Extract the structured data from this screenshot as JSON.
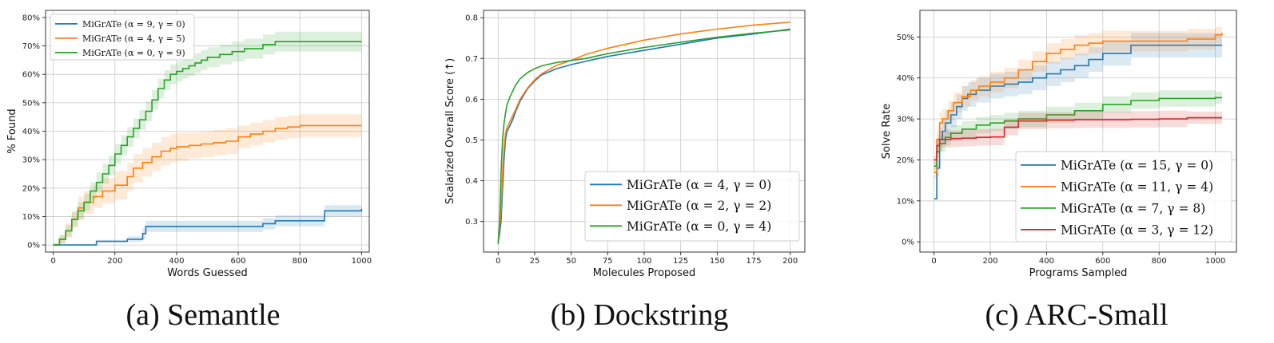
{
  "colors": {
    "blue": "#1f77b4",
    "orange": "#ff7f0e",
    "green": "#2ca02c",
    "red": "#d62728"
  },
  "chart_data": [
    {
      "type": "line",
      "caption": "(a) Semantle",
      "xlabel": "Words Guessed",
      "ylabel": "% Found",
      "xlim": [
        -25,
        1025
      ],
      "ylim": [
        -2.5,
        82.5
      ],
      "xticks": [
        0,
        200,
        400,
        600,
        800,
        1000
      ],
      "xtick_labels": [
        "0",
        "200",
        "400",
        "600",
        "800",
        "1000"
      ],
      "yticks": [
        0,
        10,
        20,
        30,
        40,
        50,
        60,
        70,
        80
      ],
      "ytick_labels": [
        "0%",
        "10%",
        "20%",
        "30%",
        "40%",
        "50%",
        "60%",
        "70%",
        "80%"
      ],
      "grid": true,
      "legend": "upper left",
      "series": [
        {
          "name": "MiGrATe (α = 9, γ = 0)",
          "color": "#1f77b4",
          "step": true,
          "x": [
            0,
            140,
            240,
            290,
            300,
            680,
            720,
            880,
            1000
          ],
          "y": [
            0,
            1.3,
            2,
            4,
            6.5,
            7.5,
            8.5,
            12,
            12.7
          ],
          "band": [
            0,
            0.5,
            1,
            2,
            2,
            2,
            2,
            2,
            2
          ]
        },
        {
          "name": "MiGrATe (α = 4, γ = 5)",
          "color": "#ff7f0e",
          "step": true,
          "x": [
            0,
            20,
            40,
            60,
            80,
            100,
            130,
            160,
            200,
            240,
            260,
            290,
            320,
            350,
            380,
            400,
            440,
            480,
            520,
            560,
            600,
            640,
            680,
            720,
            760,
            800,
            1000
          ],
          "y": [
            0,
            2,
            5,
            9,
            13,
            15,
            17,
            19,
            21,
            24,
            27,
            29,
            31,
            33,
            34,
            34.5,
            35,
            35.5,
            36,
            36.5,
            38,
            39,
            40,
            41,
            41.5,
            42,
            42
          ],
          "band": [
            0.5,
            1.5,
            2.5,
            3,
            4,
            4,
            4,
            4.5,
            5,
            5,
            5,
            5,
            5,
            5,
            5,
            5,
            4.5,
            4.5,
            4.5,
            4.5,
            4,
            4,
            4,
            4,
            4,
            4,
            4
          ]
        },
        {
          "name": "MiGrATe (α = 0, γ = 9)",
          "color": "#2ca02c",
          "step": true,
          "x": [
            0,
            20,
            40,
            60,
            80,
            100,
            120,
            140,
            160,
            180,
            200,
            220,
            240,
            260,
            280,
            300,
            320,
            340,
            360,
            380,
            400,
            420,
            440,
            460,
            480,
            500,
            540,
            580,
            620,
            680,
            720,
            1000
          ],
          "y": [
            0,
            2,
            5,
            9,
            12,
            15,
            19,
            22,
            25,
            28,
            32,
            35,
            38,
            41,
            44,
            47,
            51,
            55,
            58,
            60,
            61,
            62,
            63,
            64,
            65,
            66,
            67,
            68,
            69,
            70.5,
            71.5,
            71.5
          ],
          "band": [
            0.5,
            1.5,
            2,
            2.5,
            3,
            3,
            3,
            3.5,
            3.5,
            3.5,
            3.5,
            3.5,
            3.5,
            3.5,
            3.5,
            3.5,
            3.5,
            3.5,
            3.5,
            3.5,
            3.5,
            3.5,
            3.5,
            3.5,
            3.5,
            3.5,
            3.5,
            3.5,
            3.5,
            3.5,
            3.5,
            3.5
          ]
        }
      ]
    },
    {
      "type": "line",
      "caption": "(b) Dockstring",
      "xlabel": "Molecules Proposed",
      "ylabel": "Scalarized Overall Score (↑)",
      "xlim": [
        -10,
        210
      ],
      "ylim": [
        0.225,
        0.818
      ],
      "xticks": [
        0,
        25,
        50,
        75,
        100,
        125,
        150,
        175,
        200
      ],
      "xtick_labels": [
        "0",
        "25",
        "50",
        "75",
        "100",
        "125",
        "150",
        "175",
        "200"
      ],
      "yticks": [
        0.3,
        0.4,
        0.5,
        0.6,
        0.7,
        0.8
      ],
      "ytick_labels": [
        "0.3",
        "0.4",
        "0.5",
        "0.6",
        "0.7",
        "0.8"
      ],
      "grid": true,
      "legend": "lower right",
      "series": [
        {
          "name": "MiGrATe (α = 4, γ = 0)",
          "color": "#1f77b4",
          "step": false,
          "x": [
            0,
            1,
            2,
            3,
            4,
            5,
            6,
            8,
            10,
            12,
            15,
            20,
            25,
            30,
            40,
            50,
            60,
            75,
            100,
            125,
            150,
            175,
            200
          ],
          "y": [
            0.25,
            0.27,
            0.3,
            0.38,
            0.45,
            0.5,
            0.52,
            0.535,
            0.55,
            0.57,
            0.595,
            0.625,
            0.645,
            0.66,
            0.675,
            0.685,
            0.693,
            0.705,
            0.72,
            0.735,
            0.75,
            0.76,
            0.772
          ]
        },
        {
          "name": "MiGrATe (α = 2, γ = 2)",
          "color": "#ff7f0e",
          "step": false,
          "x": [
            0,
            1,
            2,
            3,
            4,
            5,
            6,
            8,
            10,
            12,
            15,
            20,
            25,
            30,
            40,
            50,
            60,
            75,
            100,
            125,
            150,
            175,
            200
          ],
          "y": [
            0.25,
            0.28,
            0.33,
            0.42,
            0.48,
            0.515,
            0.53,
            0.545,
            0.56,
            0.575,
            0.6,
            0.627,
            0.648,
            0.663,
            0.683,
            0.695,
            0.71,
            0.725,
            0.745,
            0.76,
            0.772,
            0.782,
            0.789
          ]
        },
        {
          "name": "MiGrATe (α = 0, γ = 4)",
          "color": "#2ca02c",
          "step": false,
          "x": [
            0,
            1,
            2,
            3,
            4,
            5,
            6,
            8,
            10,
            12,
            15,
            20,
            25,
            30,
            40,
            50,
            60,
            75,
            100,
            125,
            150,
            175,
            200
          ],
          "y": [
            0.245,
            0.3,
            0.42,
            0.5,
            0.54,
            0.565,
            0.585,
            0.605,
            0.62,
            0.635,
            0.65,
            0.665,
            0.675,
            0.682,
            0.69,
            0.695,
            0.7,
            0.712,
            0.727,
            0.74,
            0.752,
            0.762,
            0.77
          ]
        }
      ]
    },
    {
      "type": "line",
      "caption": "(c) ARC-Small",
      "xlabel": "Programs Sampled",
      "ylabel": "Solve Rate",
      "xlim": [
        -50,
        1075
      ],
      "ylim": [
        -2.5,
        56.5
      ],
      "xticks": [
        0,
        200,
        400,
        600,
        800,
        1000
      ],
      "xtick_labels": [
        "0",
        "200",
        "400",
        "600",
        "800",
        "1000"
      ],
      "yticks": [
        0,
        10,
        20,
        30,
        40,
        50
      ],
      "ytick_labels": [
        "0%",
        "10%",
        "20%",
        "30%",
        "40%",
        "50%"
      ],
      "grid": true,
      "legend": "lower right",
      "series": [
        {
          "name": "MiGrATe (α = 15, γ = 0)",
          "color": "#1f77b4",
          "step": true,
          "x": [
            0,
            10,
            20,
            30,
            40,
            60,
            80,
            100,
            120,
            150,
            200,
            250,
            300,
            350,
            400,
            450,
            500,
            550,
            600,
            700,
            1024
          ],
          "y": [
            10.5,
            18,
            25,
            27,
            29,
            31,
            33,
            35,
            36,
            37,
            38,
            38.5,
            39,
            40,
            41,
            42,
            43,
            44.5,
            46,
            48,
            48
          ],
          "band": [
            0,
            2,
            3,
            3,
            3,
            3,
            3,
            3,
            3,
            3,
            3,
            3,
            3,
            3,
            3,
            3,
            3,
            3,
            3,
            3,
            3
          ]
        },
        {
          "name": "MiGrATe (α = 11, γ = 4)",
          "color": "#ff7f0e",
          "step": true,
          "x": [
            0,
            10,
            20,
            30,
            50,
            70,
            100,
            130,
            160,
            200,
            250,
            300,
            350,
            400,
            450,
            500,
            550,
            600,
            700,
            800,
            900,
            1000,
            1024
          ],
          "y": [
            17,
            25,
            29,
            30,
            32,
            34,
            35.5,
            37,
            38,
            39,
            40,
            42,
            44,
            46,
            47,
            48,
            48.5,
            49,
            49,
            49,
            49.5,
            50.5,
            51
          ],
          "band": [
            1.5,
            2,
            2.5,
            2.5,
            2.5,
            2.5,
            2.5,
            2.5,
            2.5,
            2.5,
            2.5,
            2.5,
            2.5,
            2.5,
            2.5,
            2.5,
            2.5,
            2.5,
            2.5,
            2.5,
            2.5,
            2,
            2
          ]
        },
        {
          "name": "MiGrATe (α = 7, γ = 8)",
          "color": "#2ca02c",
          "step": true,
          "x": [
            0,
            10,
            20,
            40,
            60,
            100,
            150,
            200,
            250,
            300,
            400,
            500,
            600,
            700,
            800,
            900,
            1000,
            1024
          ],
          "y": [
            18.5,
            22,
            24,
            25.5,
            26.5,
            27.5,
            28.5,
            29,
            29.5,
            30,
            31,
            32,
            33.5,
            34.5,
            35,
            35,
            35.2,
            35.2
          ],
          "band": [
            1,
            1.5,
            2,
            2,
            2,
            2,
            2,
            2,
            2,
            2,
            2,
            2,
            2,
            2,
            2,
            2,
            1.5,
            1.5
          ]
        },
        {
          "name": "MiGrATe (α = 3, γ = 12)",
          "color": "#d62728",
          "step": true,
          "x": [
            0,
            10,
            20,
            60,
            100,
            150,
            200,
            250,
            300,
            400,
            500,
            600,
            700,
            800,
            900,
            1024
          ],
          "y": [
            20,
            23.5,
            25,
            25.2,
            25.3,
            25.5,
            25.6,
            28,
            29.5,
            29.7,
            29.8,
            29.8,
            29.9,
            30,
            30.3,
            30.3
          ],
          "band": [
            1,
            2,
            2,
            2,
            2,
            2,
            2,
            2,
            2,
            2,
            2,
            2,
            2,
            2,
            1.5,
            1.5
          ]
        }
      ]
    }
  ]
}
